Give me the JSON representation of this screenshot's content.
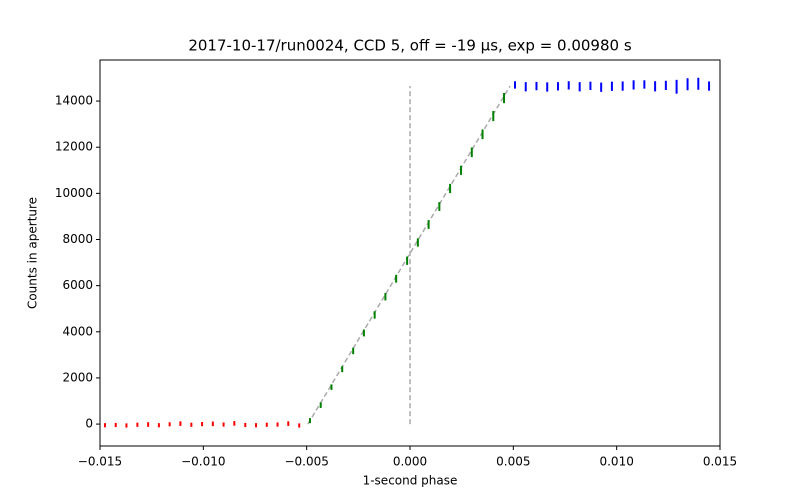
{
  "chart_data": {
    "type": "errorbar",
    "title": "2017-10-17/run0024, CCD 5, off = -19 μs, exp = 0.00980 s",
    "x_label": "1-second phase",
    "y_label": "Counts in aperture",
    "xlim": [
      -0.015,
      0.015
    ],
    "ylim": [
      -950,
      15780
    ],
    "xticks": [
      {
        "value": -0.015,
        "label": "−0.015"
      },
      {
        "value": -0.01,
        "label": "−0.010"
      },
      {
        "value": -0.005,
        "label": "−0.005"
      },
      {
        "value": 0,
        "label": "0.000"
      },
      {
        "value": 0.005,
        "label": "0.005"
      },
      {
        "value": 0.01,
        "label": "0.010"
      },
      {
        "value": 0.015,
        "label": "0.015"
      }
    ],
    "yticks": [
      0,
      2000,
      4000,
      6000,
      8000,
      10000,
      12000,
      14000
    ],
    "series": [
      {
        "color": "#ff0000",
        "x": [
          -0.01476,
          -0.01424,
          -0.01372,
          -0.01319,
          -0.01267,
          -0.01215,
          -0.01163,
          -0.01111,
          -0.01058,
          -0.01006,
          -0.00954,
          -0.00902,
          -0.0085,
          -0.00797,
          -0.00745,
          -0.00693,
          -0.00641,
          -0.00589,
          -0.00536
        ],
        "values": [
          -50,
          -40,
          -60,
          -30,
          -20,
          -50,
          -10,
          20,
          -30,
          0,
          10,
          -20,
          30,
          -40,
          -50,
          -30,
          -20,
          20,
          -60
        ],
        "errors": [
          90,
          90,
          90,
          90,
          100,
          90,
          90,
          100,
          90,
          90,
          100,
          90,
          100,
          90,
          90,
          90,
          90,
          100,
          90
        ]
      },
      {
        "color": "#008000",
        "x": [
          -0.00484,
          -0.00432,
          -0.0038,
          -0.00328,
          -0.00275,
          -0.00223,
          -0.00171,
          -0.00119,
          -0.00067,
          -0.00014,
          0.00038,
          0.0009,
          0.00142,
          0.00194,
          0.00247,
          0.00299,
          0.00351,
          0.00403,
          0.00455
        ],
        "values": [
          150,
          820,
          1600,
          2380,
          3170,
          3950,
          4730,
          5520,
          6300,
          7080,
          7870,
          8650,
          9430,
          10210,
          11000,
          11780,
          12560,
          13350,
          14130
        ],
        "errors": [
          110,
          120,
          120,
          130,
          140,
          150,
          160,
          160,
          170,
          180,
          180,
          190,
          190,
          200,
          200,
          210,
          210,
          220,
          220
        ]
      },
      {
        "color": "#0000ff",
        "x": [
          0.00508,
          0.0056,
          0.00612,
          0.00664,
          0.00716,
          0.00768,
          0.00821,
          0.00873,
          0.00925,
          0.00977,
          0.01029,
          0.01082,
          0.01134,
          0.01186,
          0.01238,
          0.0129,
          0.01343,
          0.01395,
          0.01447
        ],
        "values": [
          14700,
          14620,
          14650,
          14610,
          14640,
          14680,
          14620,
          14660,
          14600,
          14640,
          14650,
          14700,
          14720,
          14640,
          14680,
          14620,
          14730,
          14750,
          14650
        ],
        "errors": [
          160,
          200,
          180,
          200,
          180,
          180,
          200,
          180,
          200,
          200,
          200,
          200,
          180,
          220,
          200,
          300,
          260,
          260,
          200
        ]
      }
    ],
    "fit_line": {
      "color": "#aaaaaa",
      "x": [
        -0.00494,
        0.00484
      ],
      "y": [
        0,
        14650
      ]
    },
    "vline": {
      "color": "#aaaaaa",
      "x": 0,
      "y": [
        0,
        14650
      ]
    }
  }
}
